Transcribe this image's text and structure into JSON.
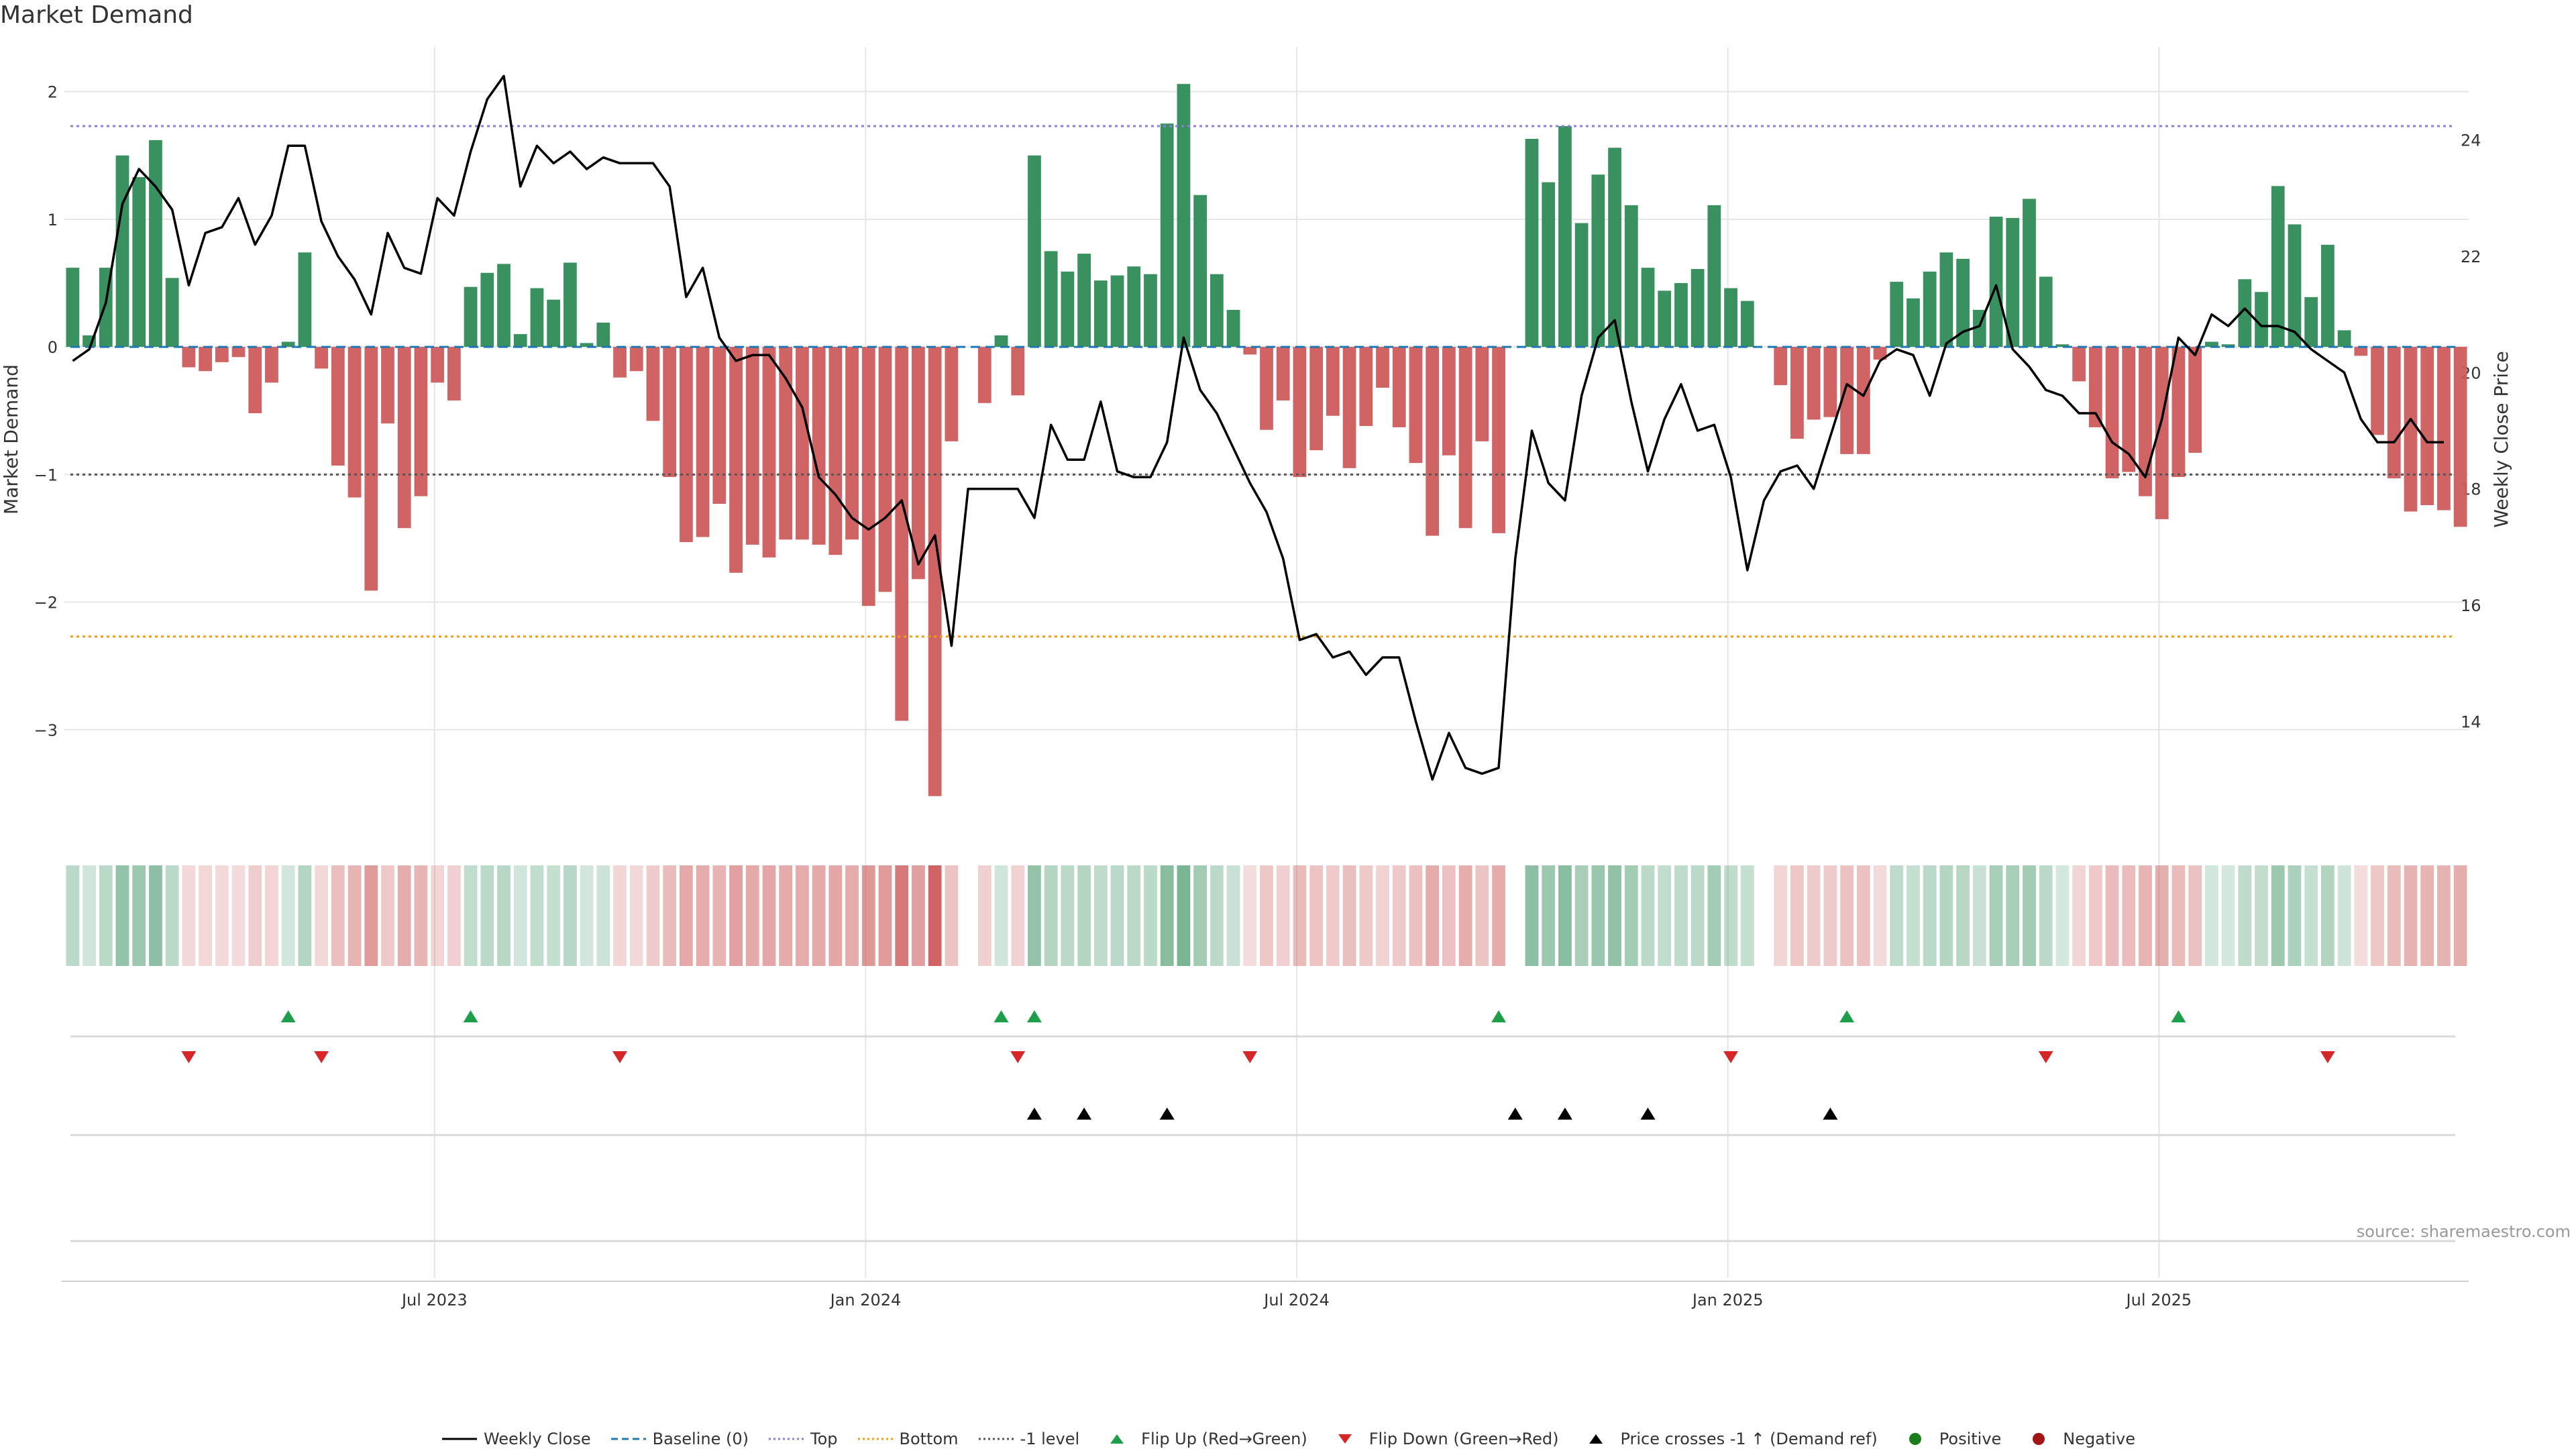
{
  "chart_data": {
    "type": "bar",
    "title": "Market Demand",
    "ylabel": "Market Demand",
    "y2label": "Weekly Close Price",
    "ylim": [
      -3.8,
      2.35
    ],
    "y2lim": [
      12.1,
      25.6
    ],
    "yticks": [
      -3,
      -2,
      -1,
      0,
      1,
      2
    ],
    "y2ticks": [
      14,
      16,
      18,
      20,
      22,
      24
    ],
    "xtick_labels": [
      "Jul 2023",
      "Jan 2024",
      "Jul 2024",
      "Jan 2025",
      "Jul 2025"
    ],
    "xtick_index": [
      22,
      48,
      74,
      100,
      126
    ],
    "reference_lines": {
      "top": 1.73,
      "bottom": -2.27,
      "minus_one": -1,
      "baseline": 0
    },
    "demand": [
      0.62,
      0.09,
      0.62,
      1.5,
      1.33,
      1.62,
      0.54,
      -0.16,
      -0.19,
      -0.12,
      -0.08,
      -0.52,
      -0.28,
      0.04,
      0.74,
      -0.17,
      -0.93,
      -1.18,
      -1.91,
      -0.6,
      -1.42,
      -1.17,
      -0.28,
      -0.42,
      0.47,
      0.58,
      0.65,
      0.1,
      0.46,
      0.37,
      0.66,
      0.03,
      0.19,
      -0.24,
      -0.19,
      -0.58,
      -1.02,
      -1.53,
      -1.49,
      -1.23,
      -1.77,
      -1.55,
      -1.65,
      -1.51,
      -1.51,
      -1.55,
      -1.63,
      -1.51,
      -2.03,
      -1.92,
      -2.93,
      -1.82,
      -3.52,
      -0.74,
      0,
      -0.44,
      0.09,
      -0.38,
      1.5,
      0.75,
      0.59,
      0.73,
      0.52,
      0.56,
      0.63,
      0.57,
      1.75,
      2.06,
      1.19,
      0.57,
      0.29,
      -0.06,
      -0.65,
      -0.42,
      -1.02,
      -0.81,
      -0.54,
      -0.95,
      -0.62,
      -0.32,
      -0.63,
      -0.91,
      -1.48,
      -0.85,
      -1.42,
      -0.74,
      -1.46,
      0,
      1.63,
      1.29,
      1.73,
      0.97,
      1.35,
      1.56,
      1.11,
      0.62,
      0.44,
      0.5,
      0.61,
      1.11,
      0.46,
      0.36,
      0,
      -0.3,
      -0.72,
      -0.57,
      -0.55,
      -0.84,
      -0.84,
      -0.1,
      0.51,
      0.38,
      0.59,
      0.74,
      0.69,
      0.29,
      1.02,
      1.01,
      1.16,
      0.55,
      0.02,
      -0.27,
      -0.63,
      -1.03,
      -0.98,
      -1.17,
      -1.35,
      -1.02,
      -0.83,
      0.04,
      0.02,
      0.53,
      0.43,
      1.26,
      0.96,
      0.39,
      0.8,
      0.13,
      -0.07,
      -0.69,
      -1.03,
      -1.29,
      -1.24,
      -1.28,
      -1.41
    ],
    "weekly_close": [
      20.2,
      20.4,
      21.2,
      22.9,
      23.5,
      23.2,
      22.8,
      21.5,
      22.4,
      22.5,
      23.0,
      22.2,
      22.7,
      23.9,
      23.9,
      22.6,
      22.0,
      21.6,
      21.0,
      22.4,
      21.8,
      21.7,
      23.0,
      22.7,
      23.8,
      24.7,
      25.1,
      23.2,
      23.9,
      23.6,
      23.8,
      23.5,
      23.7,
      23.6,
      23.6,
      23.6,
      23.2,
      21.3,
      21.8,
      20.6,
      20.2,
      20.3,
      20.3,
      19.9,
      19.4,
      18.2,
      17.9,
      17.5,
      17.3,
      17.5,
      17.8,
      16.7,
      17.2,
      15.3,
      18.0,
      18.0,
      18.0,
      18.0,
      17.5,
      19.1,
      18.5,
      18.5,
      19.5,
      18.3,
      18.2,
      18.2,
      18.8,
      20.6,
      19.7,
      19.3,
      18.7,
      18.1,
      17.6,
      16.8,
      15.4,
      15.5,
      15.1,
      15.2,
      14.8,
      15.1,
      15.1,
      14.0,
      13.0,
      13.8,
      13.2,
      13.1,
      13.2,
      16.8,
      19.0,
      18.1,
      17.8,
      19.6,
      20.6,
      20.9,
      19.5,
      18.3,
      19.2,
      19.8,
      19.0,
      19.1,
      18.2,
      16.6,
      17.8,
      18.3,
      18.4,
      18.0,
      18.9,
      19.8,
      19.6,
      20.2,
      20.4,
      20.3,
      19.6,
      20.5,
      20.7,
      20.8,
      21.5,
      20.4,
      20.1,
      19.7,
      19.6,
      19.3,
      19.3,
      18.8,
      18.6,
      18.2,
      19.2,
      20.6,
      20.3,
      21.0,
      20.8,
      21.1,
      20.8,
      20.8,
      20.7,
      20.4,
      20.2,
      20.0,
      19.2,
      18.8,
      18.8,
      19.2,
      18.8,
      18.8
    ],
    "flip_up_index": [
      13,
      24,
      56,
      58,
      86,
      107,
      127
    ],
    "flip_down_index": [
      7,
      15,
      33,
      57,
      71,
      100,
      119,
      136
    ],
    "price_cross_index": [
      58,
      61,
      66,
      87,
      90,
      95,
      106
    ],
    "legend": [
      "Weekly Close",
      "Baseline (0)",
      "Top",
      "Bottom",
      "-1 level",
      "Flip Up (Red→Green)",
      "Flip Down (Green→Red)",
      "Price crosses -1 ↑ (Demand ref)",
      "Positive",
      "Negative"
    ]
  },
  "colors": {
    "positive": "#2e8b57",
    "negative": "#cd5c5c",
    "price": "#000000",
    "baseline": "#1f77b4",
    "top": "#8a7fd6",
    "bottom": "#f39c12",
    "minus_one": "#555555",
    "flip_up": "#1f9e4a",
    "flip_down": "#d62728",
    "cross": "#000000",
    "legend_positive": "#1a7f1a",
    "legend_negative": "#a31515",
    "grid": "#e5e5e5"
  },
  "source": "source: sharemaestro.com"
}
